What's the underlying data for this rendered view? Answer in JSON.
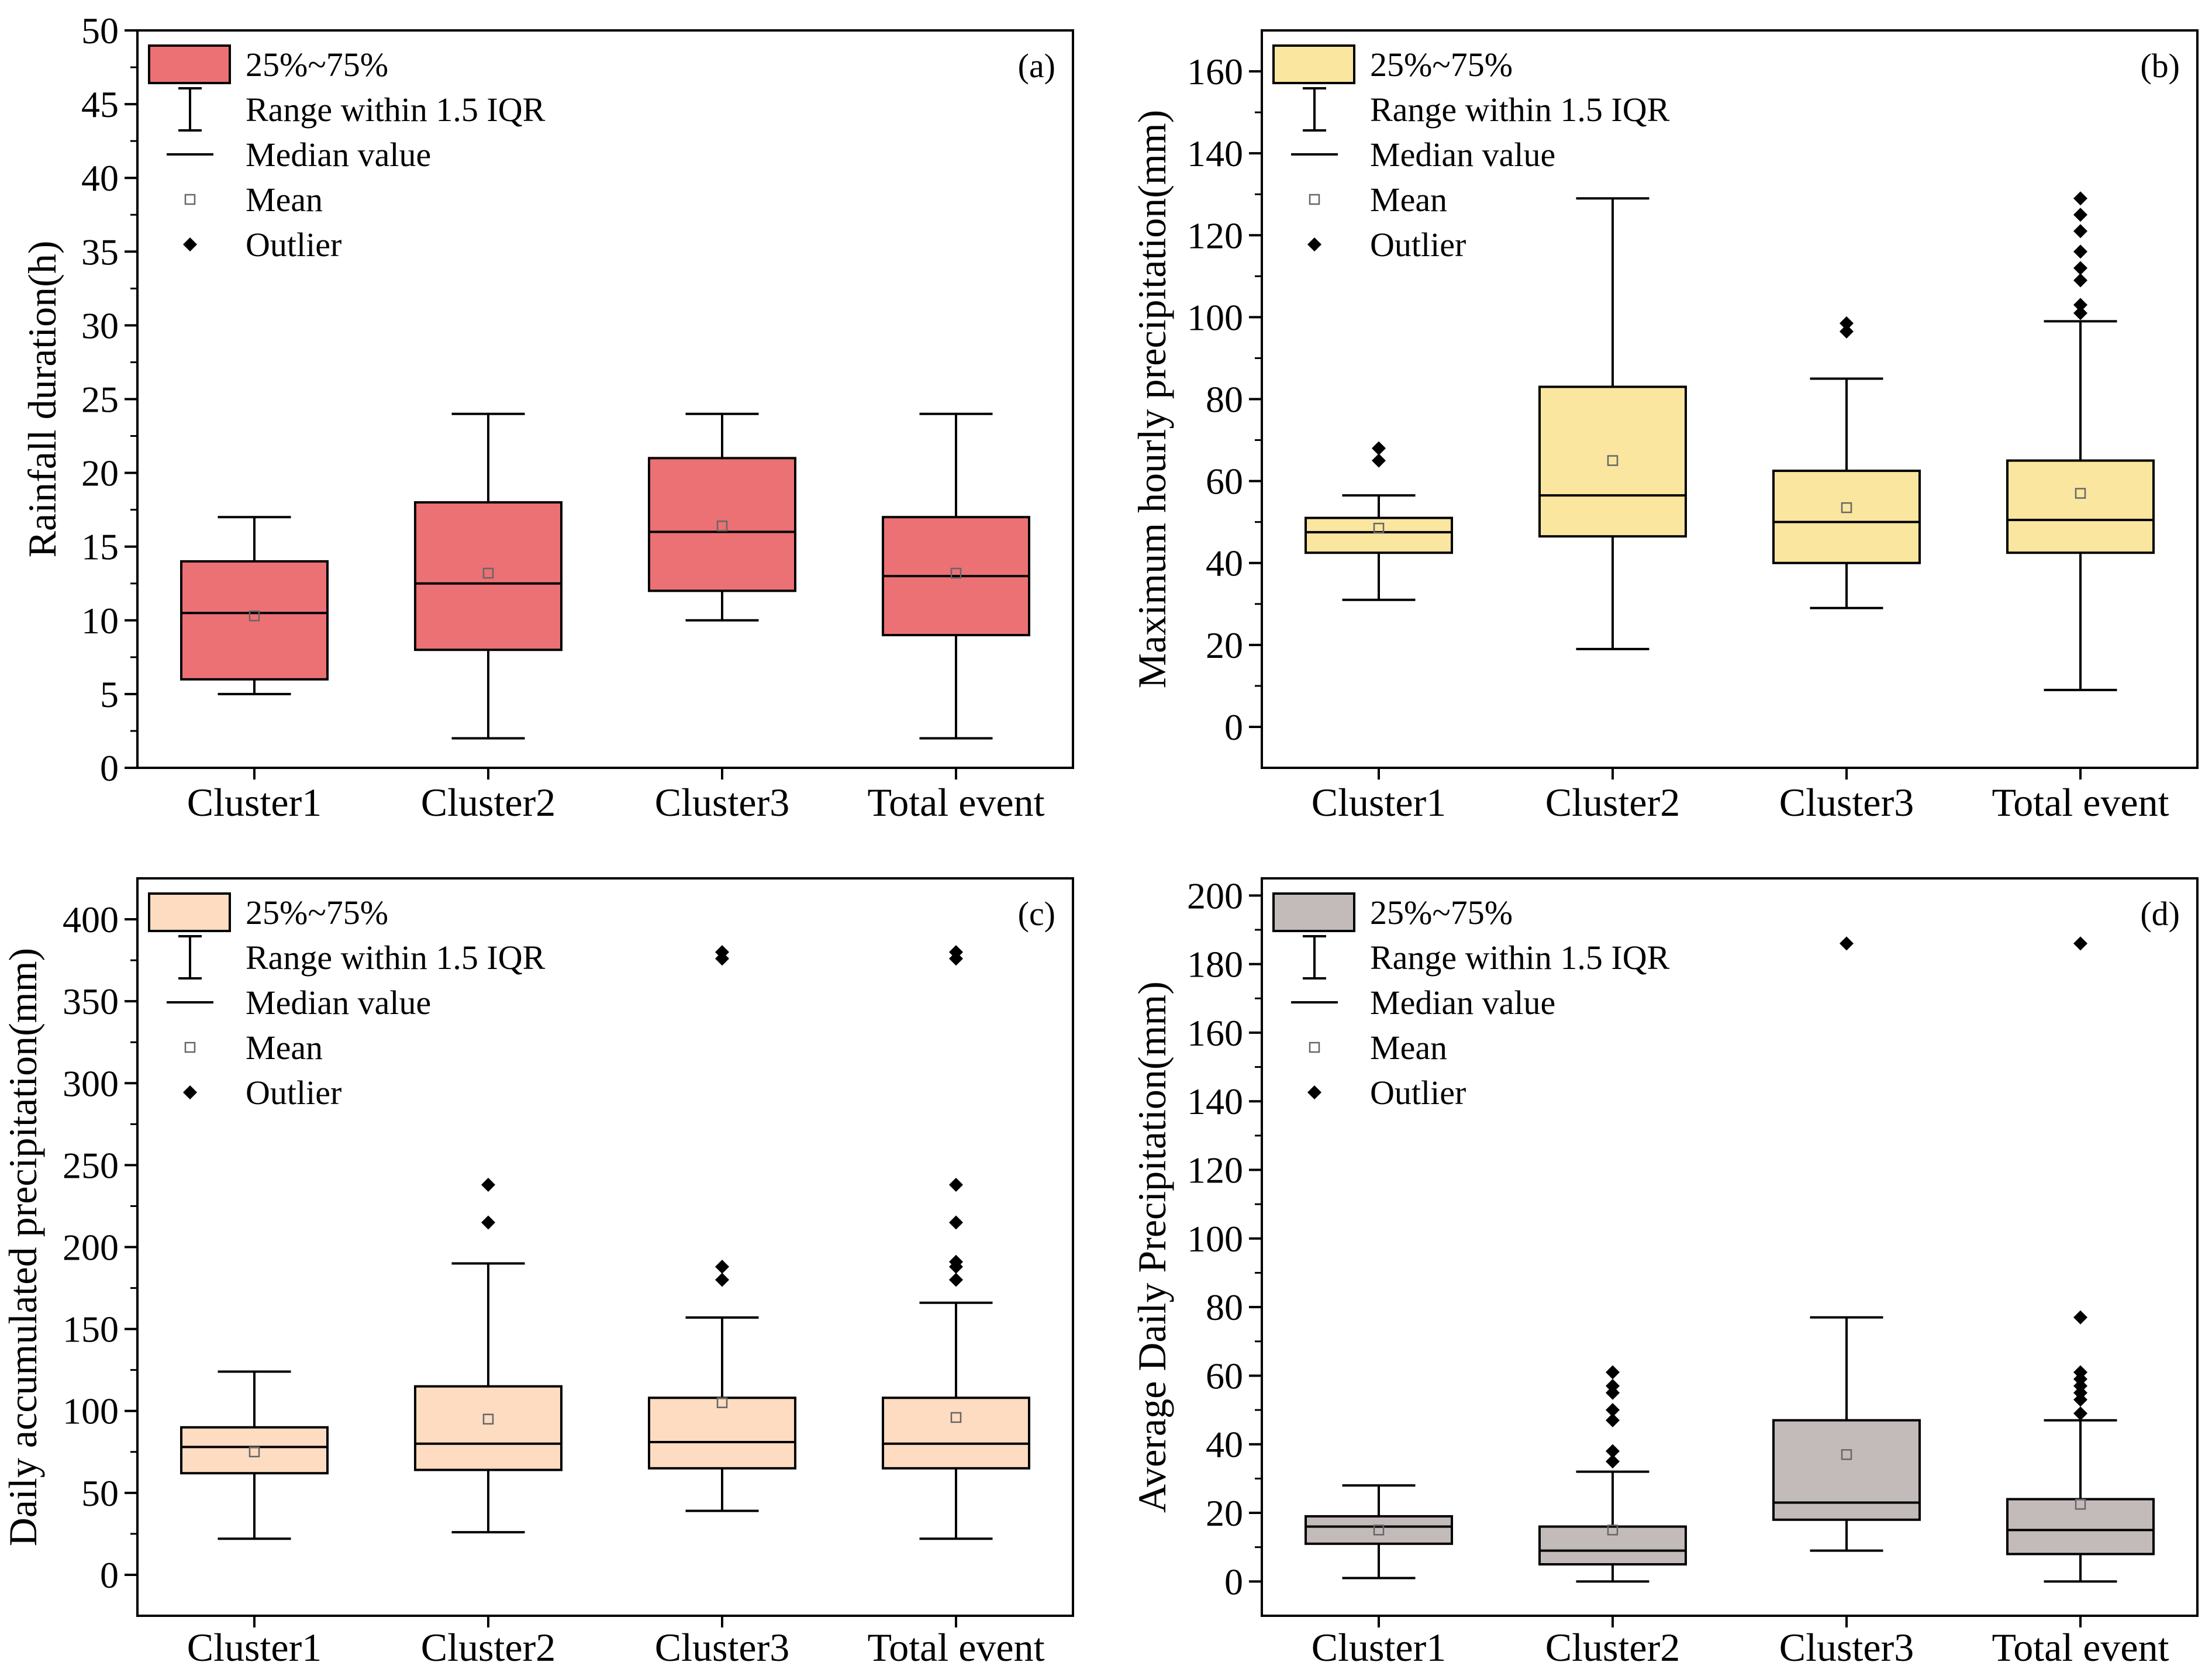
{
  "legend_items": {
    "box": "25%~75%",
    "whisker": "Range within 1.5 IQR",
    "median": "Median value",
    "mean": "Mean",
    "outlier": "Outlier"
  },
  "chart_data": [
    {
      "type": "box",
      "panel": "(a)",
      "ylabel": "Rainfall duration(h)",
      "ylim": [
        0,
        50
      ],
      "yticks": [
        0,
        5,
        10,
        15,
        20,
        25,
        30,
        35,
        40,
        45,
        50
      ],
      "ytick_labels": [
        "0",
        "5",
        "10",
        "15",
        "20",
        "25",
        "30",
        "35",
        "40",
        "45",
        "50"
      ],
      "categories": [
        "Cluster1",
        "Cluster2",
        "Cluster3",
        "Total event"
      ],
      "color": "#EC7174",
      "boxes": [
        {
          "min": 5,
          "q1": 6,
          "median": 10.5,
          "q3": 14,
          "max": 17,
          "mean": 10.3,
          "outliers": []
        },
        {
          "min": 2,
          "q1": 8,
          "median": 12.5,
          "q3": 18,
          "max": 24,
          "mean": 13.2,
          "outliers": []
        },
        {
          "min": 10,
          "q1": 12,
          "median": 16,
          "q3": 21,
          "max": 24,
          "mean": 16.4,
          "outliers": []
        },
        {
          "min": 2,
          "q1": 9,
          "median": 13,
          "q3": 17,
          "max": 24,
          "mean": 13.2,
          "outliers": []
        }
      ]
    },
    {
      "type": "box",
      "panel": "(b)",
      "ylabel": "Maximum hourly precipitation(mm)",
      "ylim": [
        -10,
        170
      ],
      "yticks": [
        0,
        20,
        40,
        60,
        80,
        100,
        120,
        140,
        160
      ],
      "ytick_labels": [
        "0",
        "20",
        "40",
        "60",
        "80",
        "100",
        "120",
        "140",
        "160"
      ],
      "categories": [
        "Cluster1",
        "Cluster2",
        "Cluster3",
        "Total event"
      ],
      "color": "#FBE69F",
      "boxes": [
        {
          "min": 31,
          "q1": 42.5,
          "median": 47.5,
          "q3": 51,
          "max": 56.5,
          "mean": 48.5,
          "outliers": [
            65,
            68
          ]
        },
        {
          "min": 19,
          "q1": 46.5,
          "median": 56.5,
          "q3": 83,
          "max": 129,
          "mean": 65,
          "outliers": []
        },
        {
          "min": 29,
          "q1": 40,
          "median": 50,
          "q3": 62.5,
          "max": 85,
          "mean": 53.5,
          "outliers": [
            96.5,
            98.5
          ]
        },
        {
          "min": 9,
          "q1": 42.5,
          "median": 50.5,
          "q3": 65,
          "max": 99,
          "mean": 57,
          "outliers": [
            101,
            103,
            109,
            112,
            116,
            121,
            125,
            129
          ]
        }
      ]
    },
    {
      "type": "box",
      "panel": "(c)",
      "ylabel": "Daily accumulated precipitation(mm)",
      "ylim": [
        -25,
        425
      ],
      "yticks": [
        0,
        50,
        100,
        150,
        200,
        250,
        300,
        350,
        400
      ],
      "ytick_labels": [
        "0",
        "50",
        "100",
        "150",
        "200",
        "250",
        "300",
        "350",
        "400"
      ],
      "categories": [
        "Cluster1",
        "Cluster2",
        "Cluster3",
        "Total event"
      ],
      "color": "#FDDCC1",
      "boxes": [
        {
          "min": 22,
          "q1": 62,
          "median": 78,
          "q3": 90,
          "max": 124,
          "mean": 75,
          "outliers": []
        },
        {
          "min": 26,
          "q1": 64,
          "median": 80,
          "q3": 115,
          "max": 190,
          "mean": 95,
          "outliers": [
            215,
            238
          ]
        },
        {
          "min": 39,
          "q1": 65,
          "median": 81,
          "q3": 108,
          "max": 157,
          "mean": 105,
          "outliers": [
            180,
            188,
            376,
            380
          ]
        },
        {
          "min": 22,
          "q1": 65,
          "median": 80,
          "q3": 108,
          "max": 166,
          "mean": 96,
          "outliers": [
            180,
            188,
            191,
            215,
            238,
            376,
            380
          ]
        }
      ]
    },
    {
      "type": "box",
      "panel": "(d)",
      "ylabel": "Average Daily Precipitation(mm)",
      "ylim": [
        -10,
        205
      ],
      "yticks": [
        0,
        20,
        40,
        60,
        80,
        100,
        120,
        140,
        160,
        180,
        200
      ],
      "ytick_labels": [
        "0",
        "20",
        "40",
        "60",
        "80",
        "100",
        "120",
        "140",
        "160",
        "180",
        "200"
      ],
      "categories": [
        "Cluster1",
        "Cluster2",
        "Cluster3",
        "Total event"
      ],
      "color": "#C3BBBA",
      "boxes": [
        {
          "min": 1,
          "q1": 11,
          "median": 16,
          "q3": 19,
          "max": 28,
          "mean": 15,
          "outliers": []
        },
        {
          "min": 0,
          "q1": 5,
          "median": 9,
          "q3": 16,
          "max": 32,
          "mean": 15,
          "outliers": [
            35,
            38,
            47,
            50,
            55,
            57,
            61
          ]
        },
        {
          "min": 9,
          "q1": 18,
          "median": 23,
          "q3": 47,
          "max": 77,
          "mean": 37,
          "outliers": [
            186
          ]
        },
        {
          "min": 0,
          "q1": 8,
          "median": 15,
          "q3": 24,
          "max": 47,
          "mean": 22.5,
          "outliers": [
            49,
            53,
            55,
            57,
            59,
            61,
            77,
            186
          ]
        }
      ]
    }
  ]
}
